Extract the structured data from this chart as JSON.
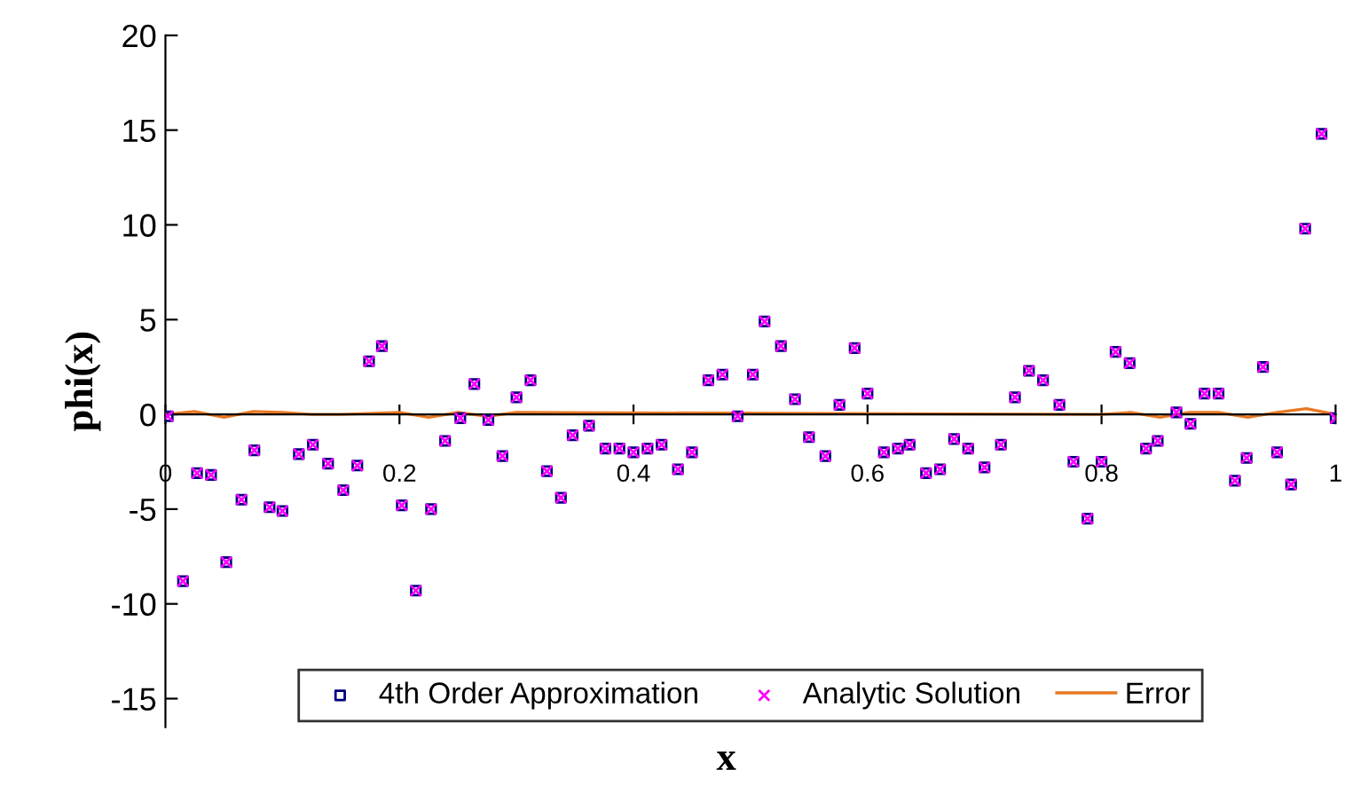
{
  "chart_data": {
    "type": "scatter",
    "xlabel": "x",
    "ylabel": "phi(x)",
    "xlim": [
      0,
      1
    ],
    "xticks": [
      0,
      0.2,
      0.4,
      0.6,
      0.8,
      1
    ],
    "ylim": [
      -16.5,
      20
    ],
    "yticks": [
      -15,
      -10,
      -5,
      0,
      5,
      10,
      15,
      20
    ],
    "grid": false,
    "legend": "bottom",
    "x": [
      0.002,
      0.015,
      0.027,
      0.039,
      0.052,
      0.065,
      0.076,
      0.089,
      0.1,
      0.114,
      0.126,
      0.139,
      0.152,
      0.164,
      0.174,
      0.185,
      0.202,
      0.214,
      0.227,
      0.239,
      0.252,
      0.264,
      0.276,
      0.288,
      0.3,
      0.312,
      0.326,
      0.338,
      0.348,
      0.362,
      0.376,
      0.388,
      0.4,
      0.412,
      0.424,
      0.438,
      0.45,
      0.464,
      0.476,
      0.489,
      0.502,
      0.512,
      0.526,
      0.538,
      0.55,
      0.564,
      0.576,
      0.589,
      0.6,
      0.614,
      0.626,
      0.636,
      0.65,
      0.662,
      0.674,
      0.686,
      0.7,
      0.714,
      0.726,
      0.738,
      0.75,
      0.764,
      0.776,
      0.788,
      0.8,
      0.812,
      0.824,
      0.838,
      0.848,
      0.864,
      0.876,
      0.888,
      0.9,
      0.914,
      0.924,
      0.938,
      0.95,
      0.962,
      0.974,
      0.988,
      1.0
    ],
    "series": [
      {
        "name": "4th Order Approximation",
        "color": "#000080",
        "marker": "square",
        "values": [
          -0.1,
          -8.8,
          -3.1,
          -3.2,
          -7.8,
          -4.5,
          -1.9,
          -4.9,
          -5.1,
          -2.1,
          -1.6,
          -2.6,
          -4.0,
          -2.7,
          2.8,
          3.6,
          -4.8,
          -9.3,
          -5.0,
          -1.4,
          -0.2,
          1.6,
          -0.3,
          -2.2,
          0.9,
          1.8,
          -3.0,
          -4.4,
          -1.1,
          -0.6,
          -1.8,
          -1.8,
          -2.0,
          -1.8,
          -1.6,
          -2.9,
          -2.0,
          1.8,
          2.1,
          -0.1,
          2.1,
          4.9,
          3.6,
          0.8,
          -1.2,
          -2.2,
          0.5,
          3.5,
          1.1,
          -2.0,
          -1.8,
          -1.6,
          -3.1,
          -2.9,
          -1.3,
          -1.8,
          -2.8,
          -1.6,
          0.9,
          2.3,
          1.8,
          0.5,
          -2.5,
          -5.5,
          -2.5,
          3.3,
          2.7,
          -1.8,
          -1.4,
          0.1,
          -0.5,
          1.1,
          1.1,
          -3.5,
          -2.3,
          2.5,
          -2.0,
          -3.7,
          9.8,
          14.8,
          -0.2
        ]
      },
      {
        "name": "Analytic Solution",
        "color": "#ff00ff",
        "marker": "cross",
        "values": [
          -0.1,
          -8.8,
          -3.1,
          -3.2,
          -7.8,
          -4.5,
          -1.9,
          -4.9,
          -5.1,
          -2.1,
          -1.6,
          -2.6,
          -4.0,
          -2.7,
          2.8,
          3.6,
          -4.8,
          -9.3,
          -5.0,
          -1.4,
          -0.2,
          1.6,
          -0.3,
          -2.2,
          0.9,
          1.8,
          -3.0,
          -4.4,
          -1.1,
          -0.6,
          -1.8,
          -1.8,
          -2.0,
          -1.8,
          -1.6,
          -2.9,
          -2.0,
          1.8,
          2.1,
          -0.1,
          2.1,
          4.9,
          3.6,
          0.8,
          -1.2,
          -2.2,
          0.5,
          3.5,
          1.1,
          -2.0,
          -1.8,
          -1.6,
          -3.1,
          -2.9,
          -1.3,
          -1.8,
          -2.8,
          -1.6,
          0.9,
          2.3,
          1.8,
          0.5,
          -2.5,
          -5.5,
          -2.5,
          3.3,
          2.7,
          -1.8,
          -1.4,
          0.1,
          -0.5,
          1.1,
          1.1,
          -3.5,
          -2.3,
          2.5,
          -2.0,
          -3.7,
          9.8,
          14.8,
          -0.2
        ]
      },
      {
        "name": "Error",
        "type": "line",
        "color": "#e87722",
        "marker": "none",
        "x": [
          0,
          0.025,
          0.05,
          0.075,
          0.1,
          0.125,
          0.15,
          0.2,
          0.225,
          0.25,
          0.275,
          0.3,
          0.8,
          0.825,
          0.85,
          0.875,
          0.9,
          0.925,
          0.95,
          0.975,
          1.0
        ],
        "values": [
          0,
          0.15,
          -0.15,
          0.15,
          0.1,
          0,
          0,
          0.1,
          -0.15,
          0.1,
          -0.1,
          0.1,
          0,
          0.1,
          -0.15,
          0.1,
          0.1,
          -0.15,
          0.1,
          0.3,
          0
        ]
      }
    ]
  }
}
